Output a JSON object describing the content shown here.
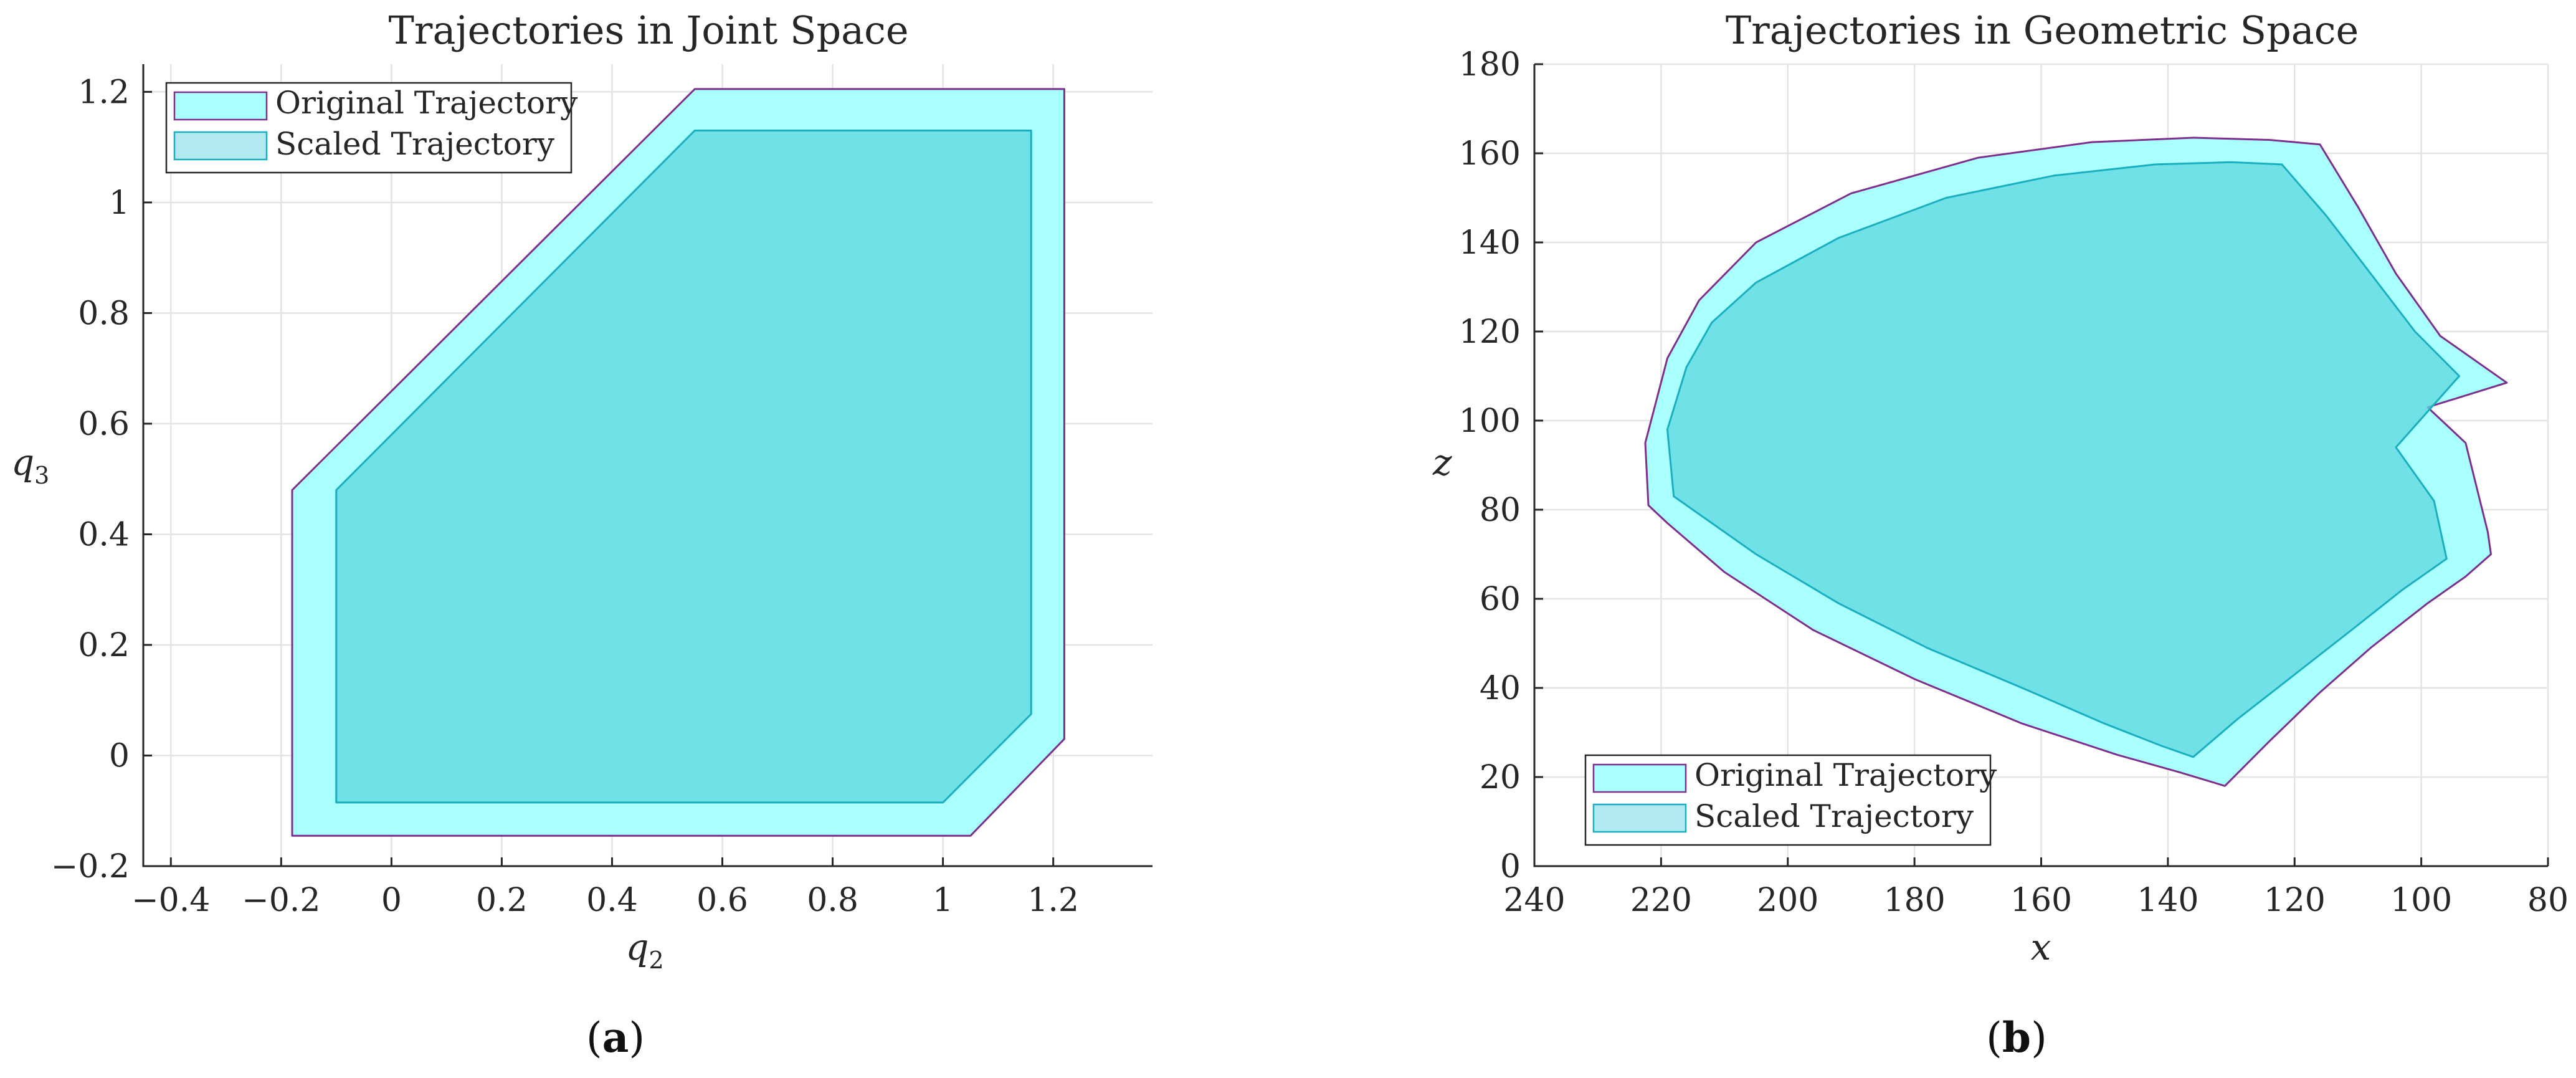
{
  "colors": {
    "original_fill": "#aaffff",
    "original_edge": "#7e2f8e",
    "scaled_fill": "#5fd9e0",
    "scaled_edge": "#1aafc0",
    "legend_scaled_fill": "#b2e9ee"
  },
  "chart_data": [
    {
      "type": "area",
      "title": "Trajectories in Joint Space",
      "xlabel": "q",
      "xlabel_sub": "2",
      "ylabel": "q",
      "ylabel_sub": "3",
      "xlim": [
        -0.45,
        1.38
      ],
      "ylim": [
        -0.2,
        1.25
      ],
      "xticks": [
        -0.4,
        -0.2,
        0,
        0.2,
        0.4,
        0.6,
        0.8,
        1,
        1.2
      ],
      "xtick_labels": [
        "−0.4",
        "−0.2",
        "0",
        "0.2",
        "0.4",
        "0.6",
        "0.8",
        "1",
        "1.2"
      ],
      "yticks": [
        -0.2,
        0,
        0.2,
        0.4,
        0.6,
        0.8,
        1,
        1.2
      ],
      "ytick_labels": [
        "−0.2",
        "0",
        "0.2",
        "0.4",
        "0.6",
        "0.8",
        "1",
        "1.2"
      ],
      "grid": true,
      "legend_position": "top-left",
      "caption": "a",
      "series": [
        {
          "name": "Original Trajectory",
          "x": [
            -0.18,
            0.55,
            1.22,
            1.22,
            1.05,
            -0.18
          ],
          "y": [
            0.48,
            1.205,
            1.205,
            0.03,
            -0.145,
            -0.145
          ]
        },
        {
          "name": "Scaled Trajectory",
          "x": [
            -0.1,
            0.55,
            1.16,
            1.16,
            1.0,
            -0.1
          ],
          "y": [
            0.48,
            1.13,
            1.13,
            0.075,
            -0.085,
            -0.085
          ]
        }
      ]
    },
    {
      "type": "area",
      "title": "Trajectories in Geometric Space",
      "xlabel": "x",
      "ylabel": "z",
      "xlim": [
        240,
        80
      ],
      "ylim": [
        0,
        180
      ],
      "xticks": [
        240,
        220,
        200,
        180,
        160,
        140,
        120,
        100,
        80
      ],
      "xtick_labels": [
        "240",
        "220",
        "200",
        "180",
        "160",
        "140",
        "120",
        "100",
        "80"
      ],
      "yticks": [
        0,
        20,
        40,
        60,
        80,
        100,
        120,
        140,
        160,
        180
      ],
      "ytick_labels": [
        "0",
        "20",
        "40",
        "60",
        "80",
        "100",
        "120",
        "140",
        "160",
        "180"
      ],
      "grid": true,
      "legend_position": "bottom-left",
      "caption": "b",
      "series": [
        {
          "name": "Original Trajectory",
          "x": [
            116,
            124,
            136,
            152,
            170,
            190,
            205,
            214,
            219,
            222.5,
            222,
            219,
            210,
            196,
            180,
            163,
            148,
            138,
            131,
            124,
            116,
            108,
            99,
            93,
            89,
            89.5,
            93,
            99,
            86.5,
            97,
            104,
            110,
            116
          ],
          "y": [
            162,
            163,
            163.5,
            162.5,
            159,
            151,
            140,
            127,
            114,
            95,
            81,
            77,
            66,
            53,
            42,
            32,
            25,
            21,
            18,
            28,
            39,
            49,
            59,
            65,
            70,
            75,
            95,
            103,
            108.5,
            119,
            133,
            148,
            162
          ]
        },
        {
          "name": "Scaled Trajectory",
          "x": [
            122,
            130,
            142,
            158,
            175,
            192,
            205,
            212,
            216,
            219,
            218,
            214,
            205,
            192,
            178,
            163,
            150,
            141,
            136,
            129,
            120,
            111,
            103,
            98,
            96,
            98,
            104,
            94,
            101,
            108,
            115,
            122
          ],
          "y": [
            157.5,
            158,
            157.5,
            155,
            150,
            141,
            131,
            122,
            112,
            98,
            83,
            79,
            70,
            59,
            49,
            40,
            32,
            27,
            24.5,
            33,
            43,
            53,
            62,
            67,
            69,
            82,
            94,
            110,
            120,
            133,
            146,
            157.5
          ]
        }
      ]
    }
  ]
}
